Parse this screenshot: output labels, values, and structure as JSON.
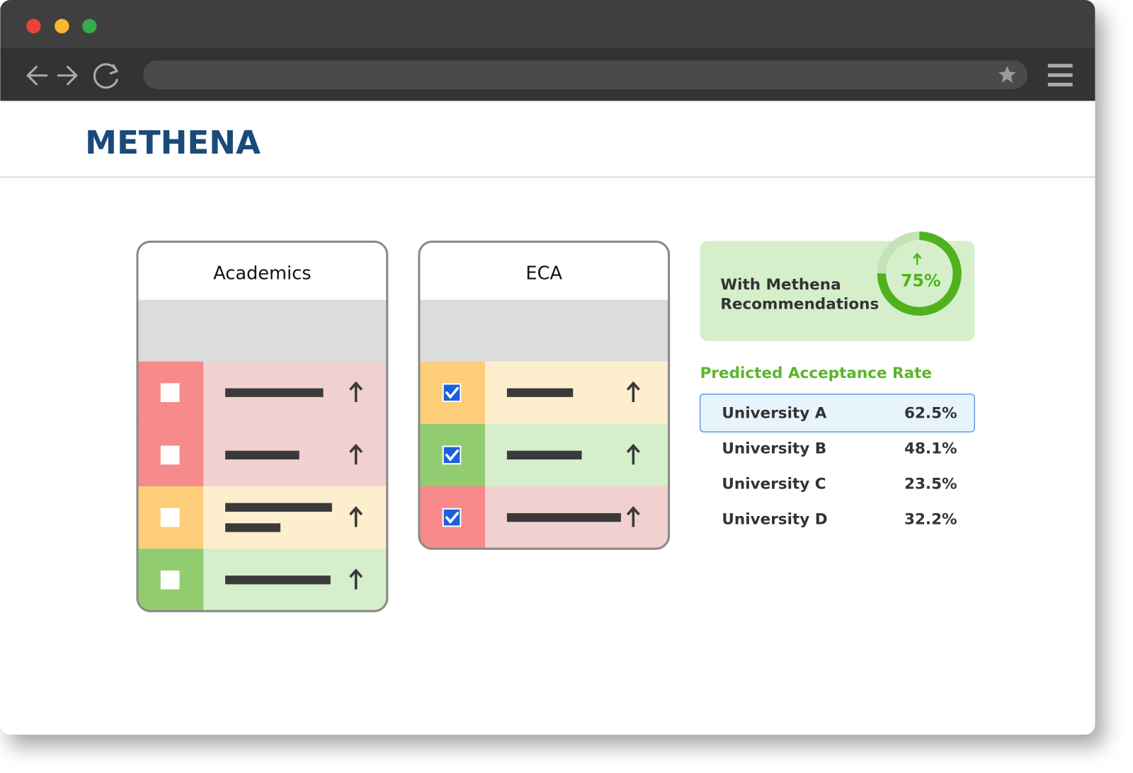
{
  "header": {
    "logo": "METHENA"
  },
  "panels": [
    {
      "title": "Academics",
      "rows": [
        {
          "color": "red",
          "checked": false
        },
        {
          "color": "red",
          "checked": false
        },
        {
          "color": "orange",
          "checked": false
        },
        {
          "color": "green",
          "checked": false
        }
      ]
    },
    {
      "title": "ECA",
      "rows": [
        {
          "color": "orange",
          "checked": true
        },
        {
          "color": "green",
          "checked": true
        },
        {
          "color": "red",
          "checked": true
        }
      ]
    }
  ],
  "summary": {
    "lines": [
      "With Methena",
      "Recommendations"
    ],
    "gauge": {
      "value": 75,
      "label": "75%"
    }
  },
  "acceptance": {
    "title": "Predicted Acceptance Rate",
    "selected": 0,
    "rows": [
      [
        "University A",
        "62.5%"
      ],
      [
        "University B",
        "48.1%"
      ],
      [
        "University C",
        "23.5%"
      ],
      [
        "University D",
        "32.2%"
      ]
    ]
  }
}
